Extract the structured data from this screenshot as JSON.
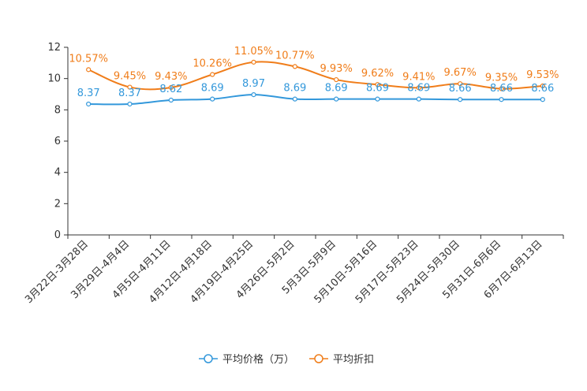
{
  "chart_data": {
    "type": "line",
    "title": "",
    "xlabel": "",
    "ylabel": "",
    "ylim": [
      0,
      12
    ],
    "yticks": [
      0,
      2,
      4,
      6,
      8,
      10,
      12
    ],
    "grid": false,
    "legend_position": "bottom-center",
    "categories": [
      "3月22日-3月28日",
      "3月29日-4月4日",
      "4月5日-4月11日",
      "4月12日-4月18日",
      "4月19日-4月25日",
      "4月26日-5月2日",
      "5月3日-5月9日",
      "5月10日-5月16日",
      "5月17日-5月23日",
      "5月24日-5月30日",
      "5月31日-6月6日",
      "6月7日-6月13日"
    ],
    "series": [
      {
        "name": "平均价格（万）",
        "color": "#3398DB",
        "values": [
          8.37,
          8.37,
          8.62,
          8.69,
          8.97,
          8.69,
          8.69,
          8.69,
          8.69,
          8.66,
          8.66,
          8.66
        ],
        "labels": [
          "8.37",
          "8.37",
          "8.62",
          "8.69",
          "8.97",
          "8.69",
          "8.69",
          "8.69",
          "8.69",
          "8.66",
          "8.66",
          "8.66"
        ]
      },
      {
        "name": "平均折扣",
        "color": "#F07D1A",
        "values": [
          10.57,
          9.45,
          9.43,
          10.26,
          11.05,
          10.77,
          9.93,
          9.62,
          9.41,
          9.67,
          9.35,
          9.53
        ],
        "labels": [
          "10.57%",
          "9.45%",
          "9.43%",
          "10.26%",
          "11.05%",
          "10.77%",
          "9.93%",
          "9.62%",
          "9.41%",
          "9.67%",
          "9.35%",
          "9.53%"
        ]
      }
    ]
  }
}
